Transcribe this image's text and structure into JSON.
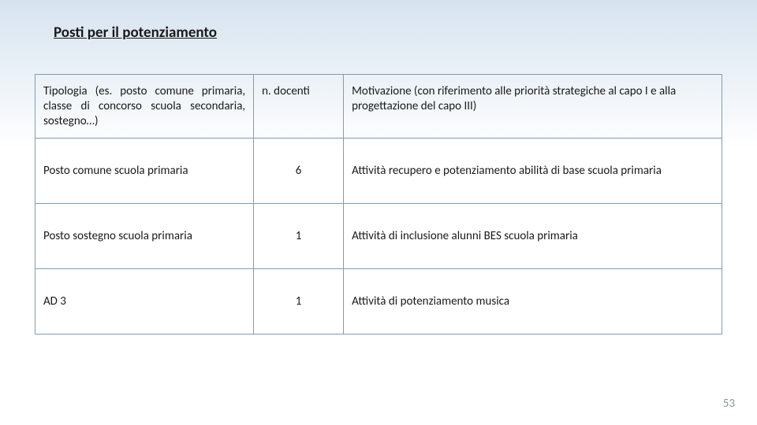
{
  "title": "Posti per il potenziamento",
  "table": {
    "header": {
      "tipologia": "Tipologia (es. posto comune primaria, classe di concorso scuola secondaria, sostegno…)",
      "docenti": "n. docenti",
      "motivazione": "Motivazione (con riferimento alle priorità strategiche al capo I e alla progettazione del capo III)"
    },
    "rows": [
      {
        "tipologia": "Posto comune scuola primaria",
        "docenti": "6",
        "motivazione": "Attività recupero e potenziamento abilità di base scuola primaria"
      },
      {
        "tipologia": "Posto sostegno scuola primaria",
        "docenti": "1",
        "motivazione": "Attività di inclusione alunni BES scuola primaria"
      },
      {
        "tipologia": "AD 3",
        "docenti": "1",
        "motivazione": "Attività di potenziamento musica"
      }
    ]
  },
  "page_number": "53",
  "colors": {
    "border": "#7f9db9",
    "bg_top": "#d6e3ef",
    "bg_bottom": "#ffffff",
    "pagenum": "#8a9b88"
  }
}
